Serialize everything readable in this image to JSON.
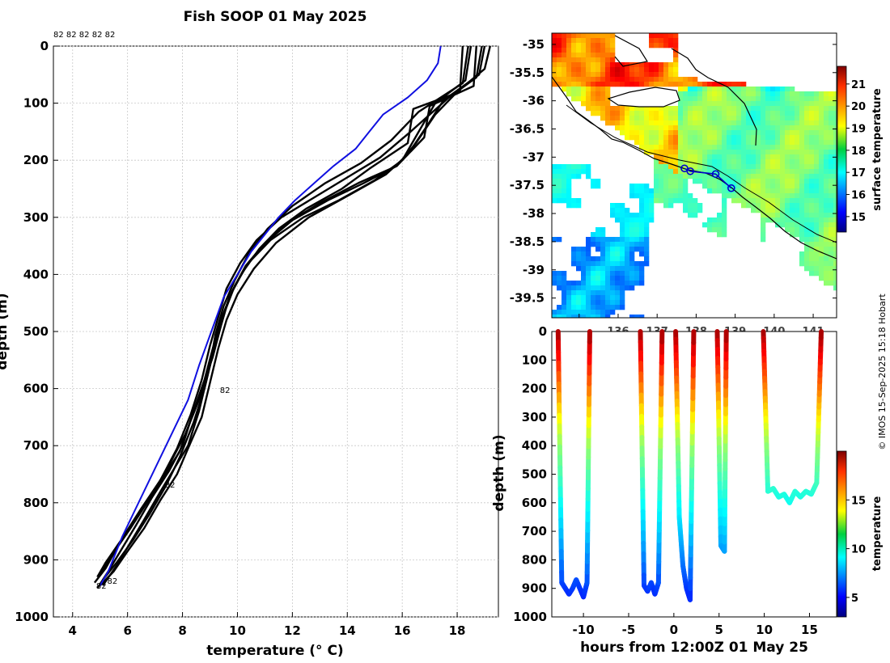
{
  "figure": {
    "title": "Fish SOOP 01 May 2025",
    "credit": "© IMOS 15-Sep-2025 15:18 Hobart"
  },
  "chart_data": [
    {
      "id": "profiles",
      "type": "line",
      "title": "Fish SOOP 01 May 2025",
      "xlabel": "temperature (° C)",
      "ylabel": "depth (m)",
      "xlim": [
        3.3,
        19.5
      ],
      "ylim": [
        1000,
        0
      ],
      "xticks": [
        4,
        6,
        8,
        10,
        12,
        14,
        16,
        18
      ],
      "yticks": [
        0,
        100,
        200,
        300,
        400,
        500,
        600,
        700,
        800,
        900,
        1000
      ],
      "grid": true,
      "top_labels": "82 82 82 82 82",
      "annotations": [
        {
          "text": "82",
          "t": 9.3,
          "d": 602
        },
        {
          "text": "82",
          "t": 7.3,
          "d": 768
        },
        {
          "text": "82",
          "t": 5.2,
          "d": 936
        },
        {
          "text": "82",
          "t": 4.8,
          "d": 945
        }
      ],
      "series": [
        {
          "name": "mean",
          "color": "#1010e0",
          "t": [
            17.4,
            17.3,
            16.9,
            16.2,
            15.3,
            14.8,
            14.3,
            13.5,
            12.8,
            12.1,
            11.5,
            11.0,
            10.5,
            10.0,
            9.5,
            9.2,
            8.9,
            8.6,
            8.2,
            7.6,
            7.0,
            6.4,
            5.8,
            5.3,
            5.0
          ],
          "d": [
            0,
            30,
            60,
            90,
            120,
            150,
            180,
            210,
            240,
            270,
            300,
            330,
            360,
            400,
            440,
            480,
            520,
            560,
            620,
            680,
            740,
            800,
            860,
            920,
            945
          ]
        },
        {
          "name": "p1",
          "color": "#000000",
          "t": [
            18.5,
            18.3,
            17.2,
            16.6,
            16.0,
            15.0,
            13.7,
            12.4,
            11.2,
            10.4,
            9.9,
            9.5,
            9.2,
            8.9,
            8.6,
            8.2,
            7.7,
            7.2,
            6.6,
            6.1,
            5.6,
            5.1
          ],
          "d": [
            0,
            60,
            100,
            150,
            200,
            235,
            270,
            300,
            340,
            380,
            420,
            470,
            520,
            580,
            640,
            700,
            740,
            780,
            830,
            870,
            910,
            945
          ]
        },
        {
          "name": "p2",
          "color": "#000000",
          "t": [
            18.7,
            18.6,
            17.0,
            16.8,
            15.8,
            14.4,
            13.0,
            11.8,
            11.0,
            10.3,
            9.8,
            9.4,
            9.1,
            8.8,
            8.4,
            8.0,
            7.5,
            6.9,
            6.3,
            5.8,
            5.3,
            4.9
          ],
          "d": [
            0,
            70,
            105,
            160,
            210,
            240,
            275,
            310,
            345,
            385,
            430,
            480,
            530,
            585,
            640,
            700,
            745,
            790,
            840,
            880,
            920,
            950
          ]
        },
        {
          "name": "p3",
          "color": "#000000",
          "t": [
            19.0,
            18.8,
            17.5,
            16.9,
            16.2,
            15.4,
            14.1,
            12.6,
            11.4,
            10.6,
            10.0,
            9.6,
            9.3,
            9.0,
            8.7,
            8.2,
            7.8,
            7.2,
            6.6,
            6.0,
            5.5,
            5.0
          ],
          "d": [
            0,
            50,
            95,
            140,
            190,
            225,
            260,
            300,
            345,
            390,
            435,
            480,
            530,
            590,
            650,
            705,
            750,
            795,
            845,
            885,
            920,
            945
          ]
        },
        {
          "name": "p4",
          "color": "#000000",
          "t": [
            18.2,
            18.1,
            16.4,
            16.2,
            14.8,
            13.8,
            12.5,
            11.5,
            10.8,
            10.2,
            9.7,
            9.4,
            9.1,
            8.7,
            8.3,
            7.9,
            7.3,
            6.7,
            6.1,
            5.6,
            5.2,
            4.8
          ],
          "d": [
            0,
            80,
            110,
            170,
            215,
            250,
            285,
            320,
            355,
            395,
            440,
            490,
            545,
            600,
            655,
            710,
            755,
            800,
            845,
            880,
            915,
            940
          ]
        },
        {
          "name": "p5",
          "color": "#000000",
          "t": [
            19.2,
            19.0,
            18.0,
            17.2,
            16.5,
            15.8,
            14.6,
            13.3,
            12.0,
            11.0,
            10.3,
            9.8,
            9.4,
            9.1,
            8.8,
            8.4,
            7.9,
            7.4,
            6.8,
            6.2,
            5.6,
            5.1
          ],
          "d": [
            0,
            40,
            80,
            120,
            170,
            210,
            240,
            270,
            305,
            345,
            385,
            430,
            480,
            540,
            600,
            660,
            720,
            770,
            820,
            865,
            905,
            935
          ]
        },
        {
          "name": "p6",
          "color": "#000000",
          "t": [
            18.4,
            18.2,
            16.6,
            15.6,
            14.5,
            13.2,
            12.0,
            11.1,
            10.4,
            9.9,
            9.5,
            9.2,
            9.0,
            8.6,
            8.1,
            7.5,
            6.9,
            6.3,
            5.7,
            5.2,
            4.9
          ],
          "d": [
            0,
            65,
            115,
            165,
            205,
            240,
            280,
            320,
            365,
            410,
            455,
            505,
            560,
            620,
            680,
            735,
            785,
            830,
            870,
            905,
            930
          ]
        },
        {
          "name": "p7",
          "color": "#000000",
          "t": [
            18.9,
            18.7,
            17.7,
            16.3,
            15.2,
            14.0,
            12.8,
            11.6,
            10.7,
            10.1,
            9.6,
            9.3,
            9.0,
            8.7,
            8.3,
            7.8,
            7.2,
            6.5,
            5.9,
            5.4,
            5.0
          ],
          "d": [
            0,
            55,
            90,
            150,
            195,
            230,
            265,
            300,
            340,
            380,
            425,
            475,
            525,
            585,
            645,
            705,
            760,
            810,
            855,
            895,
            925
          ]
        }
      ]
    },
    {
      "id": "sst_map",
      "type": "heatmap",
      "xlabel": "",
      "ylabel": "",
      "xlim": [
        134.3,
        141.6
      ],
      "ylim": [
        -39.85,
        -34.8
      ],
      "xticks": [
        135,
        136,
        137,
        138,
        139,
        140,
        141
      ],
      "xtick_labels": [
        "",
        "136",
        "137",
        "138",
        "139",
        "140",
        "141"
      ],
      "yticks": [
        -35,
        -35.5,
        -36,
        -36.5,
        -37,
        -37.5,
        -38,
        -38.5,
        -39,
        -39.5
      ],
      "colorbar": {
        "label": "surface temperature",
        "range": [
          14.3,
          21.8
        ],
        "ticks": [
          15,
          16,
          17,
          18,
          19,
          20,
          21
        ]
      },
      "track": {
        "lon": [
          137.7,
          137.85,
          138.5,
          138.9
        ],
        "lat": [
          -37.2,
          -37.25,
          -37.3,
          -37.55
        ]
      }
    },
    {
      "id": "section",
      "type": "scatter",
      "xlabel": "hours from 12:00Z 01 May 25",
      "ylabel": "depth (m)",
      "xlim": [
        -13.5,
        18
      ],
      "ylim": [
        1000,
        0
      ],
      "xticks": [
        -10,
        -5,
        0,
        5,
        10,
        15
      ],
      "yticks": [
        0,
        100,
        200,
        300,
        400,
        500,
        600,
        700,
        800,
        900,
        1000
      ],
      "colorbar": {
        "label": "temperature",
        "range": [
          3,
          20
        ],
        "ticks": [
          5,
          10,
          15
        ]
      },
      "casts": [
        {
          "h": [
            -12.8,
            -12.4,
            -12.0,
            -11.6,
            -11.2,
            -10.8,
            -10.4,
            -10.0,
            -9.6,
            -9.3
          ],
          "d": [
            0,
            880,
            900,
            920,
            900,
            870,
            900,
            930,
            880,
            0
          ]
        },
        {
          "h": [
            -3.7,
            -3.3,
            -2.9,
            -2.5,
            -2.1,
            -1.7,
            -1.3
          ],
          "d": [
            0,
            890,
            910,
            880,
            920,
            880,
            0
          ]
        },
        {
          "h": [
            0.2,
            0.6,
            1.0,
            1.4,
            1.8,
            2.2
          ],
          "d": [
            0,
            650,
            820,
            900,
            940,
            0
          ]
        },
        {
          "h": [
            4.8,
            5.2,
            5.6,
            5.8
          ],
          "d": [
            0,
            750,
            770,
            0
          ]
        },
        {
          "h": [
            9.9,
            10.4,
            11.0,
            11.6,
            12.2,
            12.8,
            13.4,
            14.0,
            14.6,
            15.2,
            15.8,
            16.3
          ],
          "d": [
            0,
            560,
            550,
            580,
            570,
            600,
            560,
            580,
            560,
            570,
            530,
            0
          ]
        }
      ]
    }
  ]
}
